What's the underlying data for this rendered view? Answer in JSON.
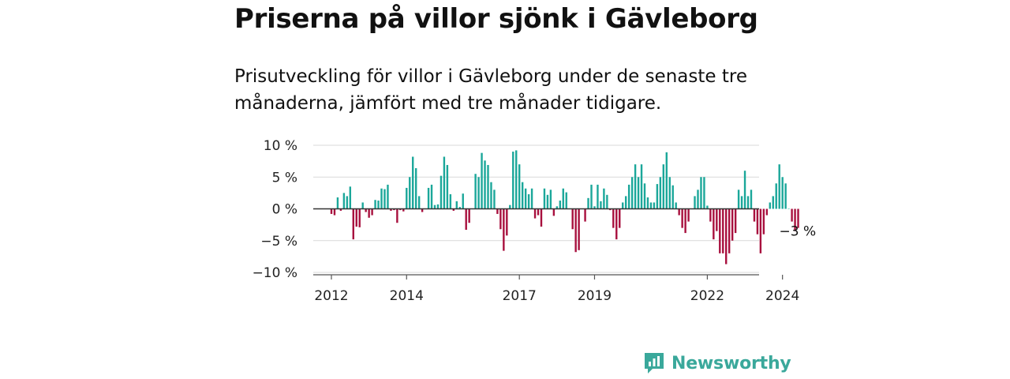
{
  "header": {
    "title": "Priserna på villor sjönk i Gävleborg",
    "subtitle": "Prisutveckling för villor i Gävleborg under de senaste tre månaderna, jämfört med tre månader tidigare."
  },
  "brand": {
    "name": "Newsworthy",
    "logo_icon": "bar-chart-speech-bubble-icon"
  },
  "colors": {
    "positive": "#1ba79a",
    "negative": "#a8103e",
    "grid": "#d9d9d9",
    "zero_line": "#333333",
    "brand": "#3aa89b"
  },
  "chart_data": {
    "type": "bar",
    "title": "Priserna på villor sjönk i Gävleborg",
    "xlabel": "",
    "ylabel": "",
    "unit": "%",
    "ylim": [
      -10,
      10
    ],
    "yticks": [
      10,
      5,
      0,
      -5,
      -10
    ],
    "ytick_labels": [
      "10 %",
      "5 %",
      "0 %",
      "−5 %",
      "−10 %"
    ],
    "xtick_labels": [
      "2012",
      "2014",
      "2017",
      "2019",
      "2022",
      "2024"
    ],
    "x_start": "2012-01",
    "frequency": "monthly",
    "grid": true,
    "annotation": {
      "label": "−3 %",
      "value": -3,
      "target": "last"
    },
    "values": [
      -0.8,
      -1.0,
      1.8,
      -0.3,
      2.5,
      2.0,
      3.5,
      -4.8,
      -2.8,
      -2.9,
      1.0,
      -0.5,
      -1.4,
      -1.0,
      1.4,
      1.3,
      3.2,
      3.1,
      3.8,
      -0.3,
      -0.2,
      -2.2,
      -0.2,
      -0.4,
      3.3,
      5.0,
      8.2,
      6.4,
      2.0,
      -0.5,
      0.0,
      3.3,
      3.8,
      0.6,
      0.7,
      5.2,
      8.2,
      6.9,
      2.3,
      -0.3,
      1.2,
      0.3,
      2.4,
      -3.3,
      -2.2,
      0.0,
      5.5,
      5.0,
      8.8,
      7.6,
      6.9,
      4.2,
      3.0,
      -0.8,
      -3.2,
      -6.6,
      -4.2,
      0.6,
      9.0,
      9.2,
      7.0,
      4.2,
      3.2,
      2.3,
      3.2,
      -1.5,
      -1.0,
      -2.8,
      3.2,
      2.2,
      3.0,
      -1.1,
      0.4,
      1.3,
      3.2,
      2.6,
      0.0,
      -3.2,
      -6.8,
      -6.5,
      0.0,
      -2.0,
      1.7,
      3.8,
      0.4,
      3.8,
      1.2,
      3.2,
      2.2,
      -0.2,
      -3.0,
      -4.8,
      -3.0,
      1.0,
      2.0,
      3.8,
      5.0,
      7.0,
      5.0,
      7.0,
      4.0,
      1.8,
      1.0,
      1.0,
      3.9,
      5.0,
      7.0,
      8.9,
      5.0,
      3.7,
      1.0,
      -1.0,
      -3.0,
      -3.8,
      -2.0,
      0.0,
      2.0,
      3.0,
      5.0,
      5.0,
      0.5,
      -2.0,
      -4.8,
      -3.5,
      -7.0,
      -7.0,
      -8.7,
      -7.0,
      -5.0,
      -3.8,
      3.0,
      2.0,
      6.0,
      2.0,
      3.0,
      -2.0,
      -4.0,
      -7.0,
      -4.0,
      -1.0,
      1.0,
      2.0,
      4.0,
      7.0,
      5.0,
      4.0,
      0.0,
      -2.0,
      -3.5,
      -3.0
    ]
  }
}
